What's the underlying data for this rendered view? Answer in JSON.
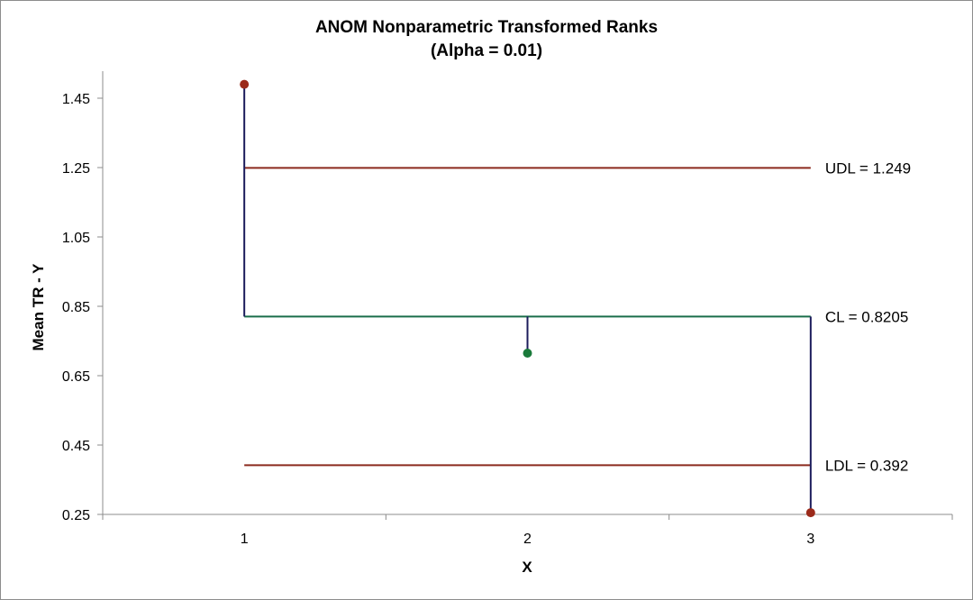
{
  "chart_data": {
    "type": "line",
    "title": "ANOM Nonparametric Transformed Ranks",
    "subtitle": "(Alpha = 0.01)",
    "xlabel": "X",
    "ylabel": "Mean TR - Y",
    "categories": [
      "1",
      "2",
      "3"
    ],
    "y_ticks": [
      "0.25",
      "0.45",
      "0.65",
      "0.85",
      "1.05",
      "1.25",
      "1.45"
    ],
    "ylim": [
      0.25,
      1.5
    ],
    "grid": false,
    "legend": "none",
    "points": [
      {
        "x": "1",
        "y": 1.49,
        "color": "#9b2a1a"
      },
      {
        "x": "2",
        "y": 0.715,
        "color": "#1a7a3a"
      },
      {
        "x": "3",
        "y": 0.255,
        "color": "#9b2a1a"
      }
    ],
    "center_line": {
      "value": 0.8205,
      "label": "CL = 0.8205",
      "color": "#1a6e4a"
    },
    "upper_limit": {
      "value": 1.249,
      "label": "UDL = 1.249",
      "color": "#8b2a1e"
    },
    "lower_limit": {
      "value": 0.392,
      "label": "LDL = 0.392",
      "color": "#8b2a1e"
    },
    "stem_color": "#1c1c5c"
  }
}
